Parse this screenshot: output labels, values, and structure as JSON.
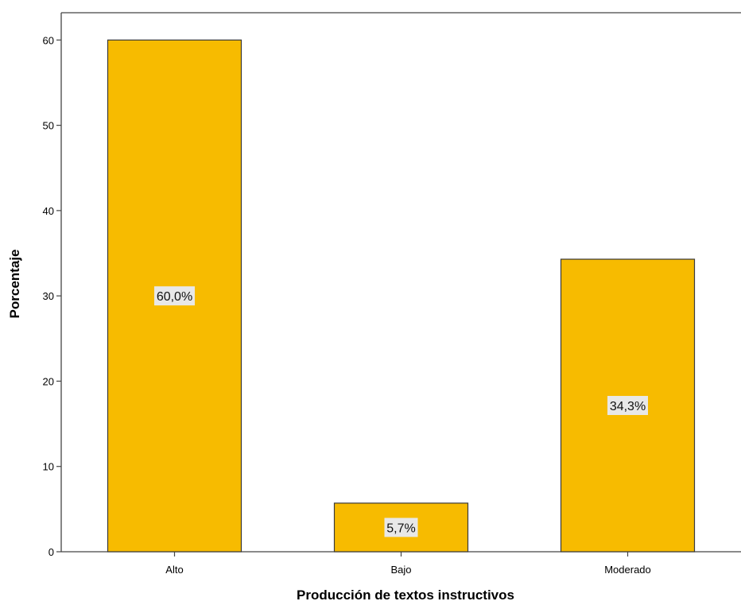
{
  "chart_data": {
    "type": "bar",
    "title": "",
    "xlabel": "Producción de textos instructivos",
    "ylabel": "Porcentaje",
    "categories": [
      "Alto",
      "Bajo",
      "Moderado"
    ],
    "values": [
      60.0,
      5.7,
      34.3
    ],
    "data_labels": [
      "60,0%",
      "5,7%",
      "34,3%"
    ],
    "ylim": [
      0,
      63.2
    ],
    "yticks": [
      0,
      10,
      20,
      30,
      40,
      50,
      60
    ],
    "ytick_labels": [
      "0",
      "10",
      "20",
      "30",
      "40",
      "50",
      "60"
    ],
    "grid": false,
    "legend": "none",
    "colors": {
      "bar_fill": "#f7bb00",
      "bar_stroke": "#3a3a3a",
      "label_background": "#e8e8e8",
      "axis": "#444444"
    }
  }
}
